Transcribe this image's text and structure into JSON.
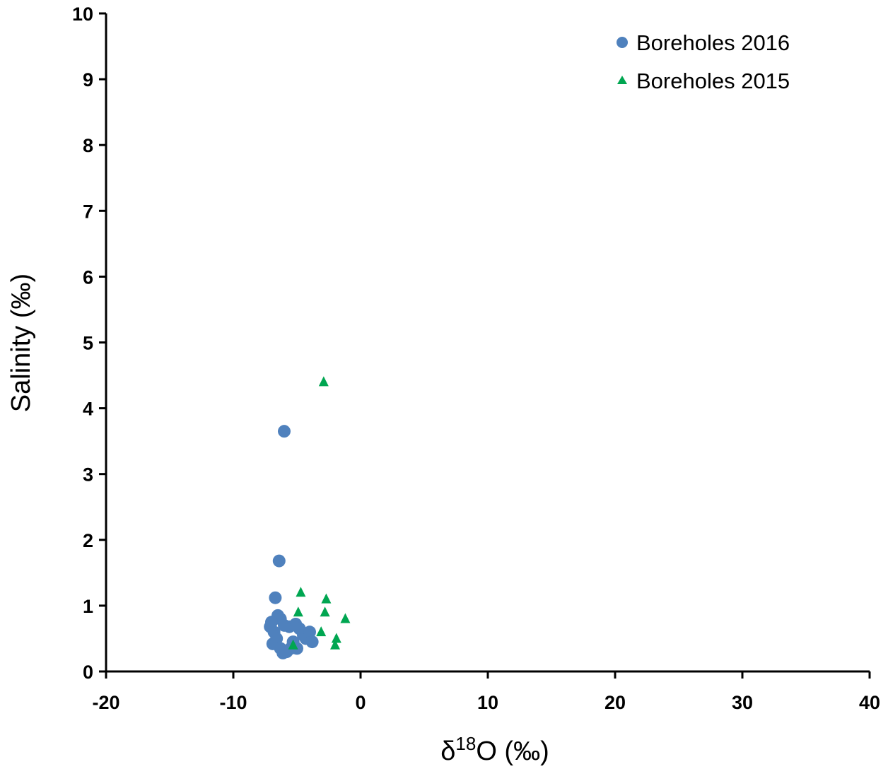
{
  "chart_data": {
    "type": "scatter",
    "title": "",
    "xlabel": "δ18O (‰)",
    "xlabel_parts": {
      "base": "δ",
      "sup": "18",
      "rest": "O (‰)"
    },
    "ylabel": "Salinity (‰)",
    "xlim": [
      -20,
      40
    ],
    "ylim": [
      0,
      10
    ],
    "xticks": [
      -20,
      -10,
      0,
      10,
      20,
      30,
      40
    ],
    "yticks": [
      0,
      1,
      2,
      3,
      4,
      5,
      6,
      7,
      8,
      9,
      10
    ],
    "grid": false,
    "legend_position": "top-right",
    "series": [
      {
        "name": "Boreholes 2016",
        "marker": "circle",
        "color": "#4f81bd",
        "points": [
          [
            -6.0,
            3.65
          ],
          [
            -6.4,
            1.68
          ],
          [
            -6.7,
            1.12
          ],
          [
            -6.5,
            0.85
          ],
          [
            -6.3,
            0.8
          ],
          [
            -7.0,
            0.75
          ],
          [
            -7.1,
            0.68
          ],
          [
            -6.8,
            0.6
          ],
          [
            -6.9,
            0.42
          ],
          [
            -6.6,
            0.5
          ],
          [
            -6.3,
            0.35
          ],
          [
            -6.1,
            0.28
          ],
          [
            -5.8,
            0.3
          ],
          [
            -5.5,
            0.35
          ],
          [
            -5.3,
            0.45
          ],
          [
            -5.0,
            0.35
          ],
          [
            -5.1,
            0.72
          ],
          [
            -5.6,
            0.68
          ],
          [
            -4.8,
            0.65
          ],
          [
            -4.5,
            0.55
          ],
          [
            -4.3,
            0.5
          ],
          [
            -4.0,
            0.6
          ],
          [
            -3.8,
            0.45
          ],
          [
            -6.0,
            0.7
          ]
        ]
      },
      {
        "name": "Boreholes 2015",
        "marker": "triangle",
        "color": "#00a651",
        "points": [
          [
            -2.9,
            4.4
          ],
          [
            -4.7,
            1.2
          ],
          [
            -2.7,
            1.1
          ],
          [
            -4.9,
            0.9
          ],
          [
            -2.8,
            0.9
          ],
          [
            -1.2,
            0.8
          ],
          [
            -3.1,
            0.6
          ],
          [
            -1.9,
            0.5
          ],
          [
            -2.0,
            0.4
          ],
          [
            -5.3,
            0.4
          ]
        ]
      }
    ]
  }
}
